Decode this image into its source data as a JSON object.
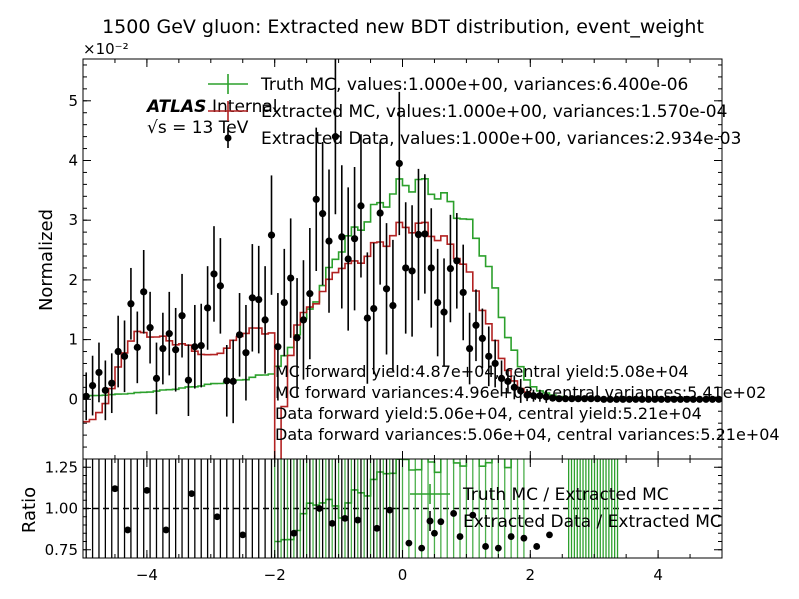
{
  "chart_data": [
    {
      "type": "line",
      "title": "1500 GeV gluon: Extracted new BDT distribution, event_weight",
      "ylabel": "Normalized",
      "xlim": [
        -5,
        5
      ],
      "ylim": [
        -0.01,
        0.057
      ],
      "y_multiplier": "×10⁻²",
      "x_ticks": [
        -4,
        -2,
        0,
        2,
        4
      ],
      "y_ticks": [
        0,
        1,
        2,
        3,
        4,
        5
      ],
      "atlas_label": "ATLAS",
      "atlas_sub": "Internal",
      "energy_label": "√s = 13 TeV",
      "legend": [
        {
          "label": "Truth MC, values:1.000e+00, variances:6.400e-06",
          "color": "#2ca02c"
        },
        {
          "label": "Extracted MC, values:1.000e+00, variances:1.570e-04",
          "color": "#b22222"
        },
        {
          "label": "Extracted Data, values:1.000e+00, variances:2.934e-03",
          "color": "#000000"
        }
      ],
      "annotations": [
        "MC forward yield:4.87e+04, central yield:5.08e+04",
        "MC forward variances:4.96e+03, central variances:5.41e+02",
        "Data forward yield:5.06e+04, central yield:5.21e+04",
        "Data forward variances:5.06e+04, central variances:5.21e+04"
      ],
      "truth_mc": {
        "x": [
          -5.0,
          -4.5,
          -4.0,
          -3.5,
          -3.0,
          -2.5,
          -2.0,
          -1.8,
          -1.5,
          -1.2,
          -1.0,
          -0.5,
          0.0,
          0.25,
          0.5,
          0.8,
          1.0,
          1.3,
          1.6,
          1.9,
          2.1,
          2.5,
          3.0,
          4.0,
          5.0
        ],
        "y": [
          0.0005,
          0.0008,
          0.0012,
          0.0018,
          0.0025,
          0.0033,
          0.0045,
          0.008,
          0.014,
          0.02,
          0.025,
          0.031,
          0.036,
          0.0362,
          0.035,
          0.032,
          0.03,
          0.024,
          0.012,
          0.004,
          0.0015,
          0.0003,
          0.0001,
          0.0,
          0.0
        ]
      },
      "extracted_mc": {
        "x": [
          -5.0,
          -4.8,
          -4.6,
          -4.4,
          -4.2,
          -4.0,
          -3.7,
          -3.4,
          -3.0,
          -2.7,
          -2.4,
          -2.1,
          -2.0,
          -1.95,
          -1.7,
          -1.4,
          -1.1,
          -1.0,
          -0.8,
          -0.5,
          -0.2,
          0.0,
          0.3,
          0.6,
          0.9,
          1.2,
          1.5,
          1.8,
          2.1,
          2.5,
          3.0,
          4.0,
          5.0
        ],
        "y": [
          -0.004,
          -0.003,
          0.0,
          0.007,
          0.011,
          0.011,
          0.01,
          0.009,
          0.007,
          0.009,
          0.012,
          0.011,
          0.012,
          -0.01,
          0.012,
          0.016,
          0.02,
          0.023,
          0.022,
          0.025,
          0.027,
          0.029,
          0.029,
          0.027,
          0.024,
          0.017,
          0.008,
          0.002,
          0.0005,
          0.0002,
          0.0001,
          0.0,
          0.0
        ]
      },
      "extracted_data": {
        "x": [
          -4.95,
          -4.85,
          -4.75,
          -4.65,
          -4.55,
          -4.45,
          -4.35,
          -4.25,
          -4.15,
          -4.05,
          -3.95,
          -3.85,
          -3.75,
          -3.65,
          -3.55,
          -3.45,
          -3.35,
          -3.25,
          -3.15,
          -3.05,
          -2.95,
          -2.85,
          -2.75,
          -2.65,
          -2.55,
          -2.45,
          -2.35,
          -2.25,
          -2.15,
          -2.05,
          -1.95,
          -1.85,
          -1.75,
          -1.65,
          -1.55,
          -1.45,
          -1.35,
          -1.25,
          -1.15,
          -1.05,
          -0.95,
          -0.85,
          -0.75,
          -0.65,
          -0.55,
          -0.45,
          -0.35,
          -0.25,
          -0.15,
          -0.05,
          0.05,
          0.15,
          0.25,
          0.35,
          0.45,
          0.55,
          0.65,
          0.75,
          0.85,
          0.95,
          1.05,
          1.15,
          1.25,
          1.35,
          1.45,
          1.55,
          1.65,
          1.75,
          1.85,
          1.95,
          2.05,
          2.15,
          2.25,
          2.35,
          2.45,
          2.55,
          2.65,
          2.75,
          2.85,
          2.95,
          3.05,
          3.15,
          3.25,
          3.35,
          3.45,
          3.55,
          3.65,
          3.75,
          3.85,
          3.95,
          4.05,
          4.15,
          4.25,
          4.35,
          4.45,
          4.55,
          4.65,
          4.75,
          4.85,
          4.95
        ],
        "y": [
          0.0005,
          0.0023,
          0.0045,
          0.0015,
          0.0027,
          0.008,
          0.0072,
          0.016,
          0.0087,
          0.018,
          0.012,
          0.0035,
          0.0085,
          0.011,
          0.0083,
          0.014,
          0.0032,
          0.0088,
          0.009,
          0.0153,
          0.021,
          0.019,
          0.0031,
          0.003,
          0.0108,
          0.0078,
          0.017,
          0.0167,
          0.0133,
          0.0275,
          0.0088,
          0.0162,
          0.0203,
          0.0103,
          0.0133,
          0.0177,
          0.0335,
          0.0311,
          0.0265,
          0.044,
          0.0272,
          0.0235,
          0.0269,
          0.0324,
          0.0136,
          0.0152,
          0.0312,
          0.0185,
          0.0157,
          0.0395,
          0.022,
          0.0215,
          0.0276,
          0.0277,
          0.022,
          0.0162,
          0.0146,
          0.0219,
          0.0232,
          0.0179,
          0.0085,
          0.0124,
          0.0102,
          0.0072,
          0.006,
          0.0035,
          0.003,
          0.002,
          0.0014,
          0.0007,
          0.0006,
          0.0006,
          0.0004,
          0.0002,
          0.0001,
          0.0001,
          0.0001,
          0.0001,
          0.0001,
          0.0001,
          0.0001,
          0.0,
          0.0,
          0.0,
          0.0,
          0.0,
          0.0,
          0.0,
          0.0,
          0.0,
          0.0,
          0.0,
          0.0,
          0.0,
          0.0,
          0.0,
          0.0,
          0.0,
          0.0,
          0.0
        ],
        "err": [
          0.004,
          0.005,
          0.005,
          0.005,
          0.005,
          0.006,
          0.006,
          0.006,
          0.006,
          0.007,
          0.006,
          0.006,
          0.006,
          0.007,
          0.007,
          0.007,
          0.006,
          0.007,
          0.007,
          0.007,
          0.008,
          0.008,
          0.006,
          0.007,
          0.007,
          0.008,
          0.009,
          0.009,
          0.009,
          0.01,
          0.009,
          0.009,
          0.01,
          0.01,
          0.01,
          0.011,
          0.012,
          0.012,
          0.012,
          0.013,
          0.012,
          0.012,
          0.012,
          0.012,
          0.011,
          0.011,
          0.012,
          0.011,
          0.011,
          0.012,
          0.011,
          0.011,
          0.011,
          0.01,
          0.01,
          0.009,
          0.009,
          0.009,
          0.008,
          0.008,
          0.006,
          0.006,
          0.005,
          0.005,
          0.004,
          0.003,
          0.002,
          0.002,
          0.002,
          0.001,
          0.001,
          0.001,
          0.001,
          0.0005,
          0.0003,
          0.0002,
          0.0002,
          0.0002,
          0.0002,
          0.0002,
          0.0002,
          0.0,
          0.0,
          0.0,
          0.0,
          0.0,
          0.0,
          0.0,
          0.0,
          0.0,
          0.0,
          0.0,
          0.0,
          0.0,
          0.0,
          0.0,
          0.0,
          0.0,
          0.0,
          0.0
        ]
      }
    },
    {
      "type": "line",
      "ylabel": "Ratio",
      "xlim": [
        -5,
        5
      ],
      "ylim": [
        0.7,
        1.3
      ],
      "x_ticks": [
        -4,
        -2,
        0,
        2,
        4
      ],
      "y_ticks": [
        0.75,
        1.0,
        1.25
      ],
      "y_tick_labels": [
        "0.75",
        "1.00",
        "1.25"
      ],
      "reference_line": 1.0,
      "legend": [
        {
          "label": "Truth MC / Extracted MC",
          "color": "#2ca02c"
        },
        {
          "label": "Extracted Data / Extracted MC",
          "color": "#000000"
        }
      ],
      "truth_ratio": {
        "x": [
          -1.95,
          -1.85,
          -1.75,
          -1.65,
          -1.55,
          -1.45,
          -1.35,
          -1.25,
          -1.15,
          -1.05,
          -0.95,
          -0.85,
          -0.75,
          -0.65,
          -0.55,
          -0.45,
          -0.35,
          -0.25,
          -0.15,
          -0.05,
          0.05,
          0.15,
          0.25,
          0.35,
          0.45,
          0.55,
          0.65,
          0.75,
          0.85,
          0.95,
          1.05,
          1.15,
          1.25,
          1.35,
          1.45,
          1.55,
          1.65,
          1.75
        ],
        "y": [
          0.8,
          0.78,
          0.82,
          0.9,
          0.95,
          1.0,
          1.05,
          1.06,
          1.02,
          1.0,
          0.98,
          1.04,
          1.07,
          1.1,
          1.12,
          1.16,
          1.18,
          1.24,
          1.25,
          1.26,
          1.27,
          1.28,
          1.25,
          1.26,
          1.28,
          1.27,
          1.3,
          1.29,
          1.3,
          1.3,
          1.3,
          1.3,
          1.3,
          1.3,
          1.3,
          1.3,
          1.3,
          1.3
        ]
      },
      "data_ratio": {
        "x": [
          -4.5,
          -4.3,
          -4.0,
          -3.7,
          -3.3,
          -2.9,
          -2.5,
          -1.7,
          -1.3,
          -1.1,
          -0.9,
          -0.7,
          -0.4,
          -0.2,
          0.1,
          0.3,
          0.5,
          0.6,
          0.8,
          0.9,
          1.1,
          1.3,
          1.5,
          1.7,
          1.9,
          2.1,
          2.3
        ],
        "y": [
          1.12,
          0.87,
          1.11,
          0.87,
          1.09,
          0.95,
          0.84,
          0.85,
          1.0,
          0.91,
          0.94,
          0.93,
          0.88,
          0.99,
          0.79,
          0.76,
          0.85,
          0.92,
          0.97,
          0.83,
          0.96,
          0.77,
          0.76,
          0.83,
          0.82,
          0.77,
          0.84
        ]
      }
    }
  ]
}
